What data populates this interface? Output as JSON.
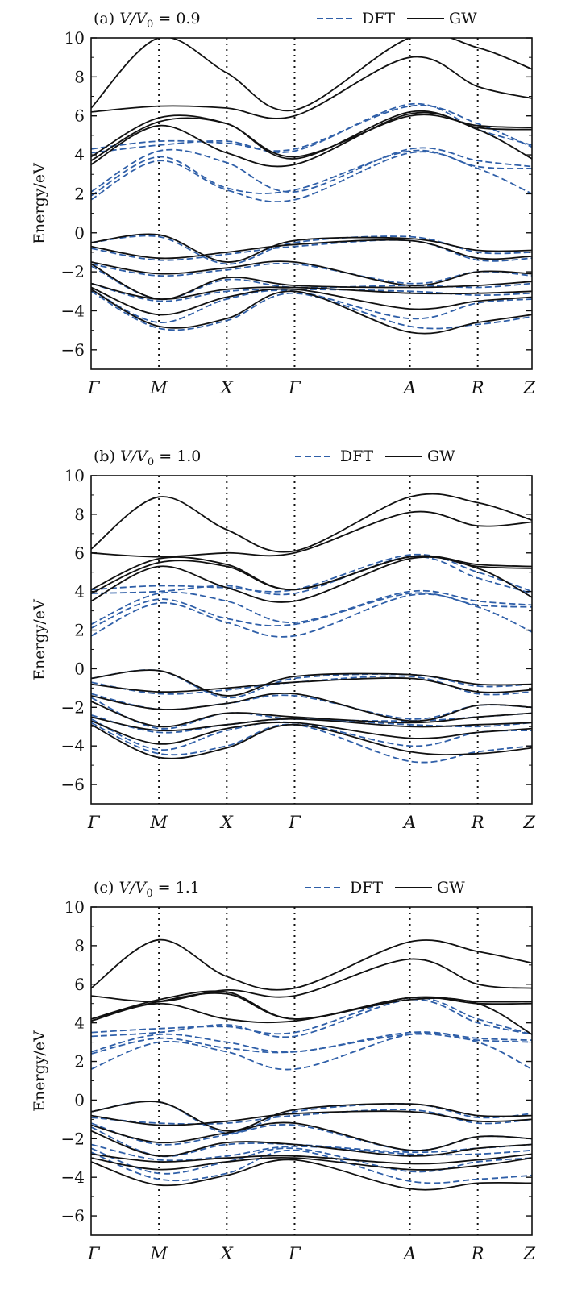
{
  "colors": {
    "dft": "#2f5fa8",
    "gw": "#111111",
    "frame": "#111111"
  },
  "chart_data": [
    {
      "type": "line",
      "panel_label": "(a)",
      "ratio_label": "V/V",
      "ratio_sub": "0",
      "ratio_value": "= 0.9",
      "ylabel": "Energy/eV",
      "ylim": [
        -7,
        10
      ],
      "yticks": [
        10,
        8,
        6,
        4,
        2,
        0,
        -2,
        -4,
        -6
      ],
      "kpoints": [
        "Γ",
        "M",
        "X",
        "Γ",
        "A",
        "R",
        "Z"
      ],
      "kpos": [
        0,
        1,
        2,
        3,
        4.7,
        5.7,
        6.5
      ],
      "legend": {
        "dft": "DFT",
        "gw": "GW"
      },
      "series": [
        {
          "name": "DFT",
          "values": [
            [
              1.7,
              3.7,
              2.2,
              1.7,
              4.1,
              3.3,
              2.0
            ],
            [
              1.9,
              3.9,
              2.3,
              2.2,
              4.2,
              3.4,
              3.3
            ],
            [
              2.1,
              4.2,
              3.6,
              2.1,
              4.3,
              3.7,
              3.4
            ],
            [
              4.1,
              4.5,
              4.7,
              4.2,
              6.6,
              5.3,
              4.5
            ],
            [
              4.3,
              4.7,
              4.6,
              4.3,
              6.5,
              5.6,
              4.4
            ],
            [
              -0.5,
              -0.2,
              -1.6,
              -0.5,
              -0.2,
              -1.0,
              -1.0
            ],
            [
              -0.8,
              -1.4,
              -1.1,
              -0.7,
              -0.4,
              -1.4,
              -1.3
            ],
            [
              -1.6,
              -2.2,
              -1.9,
              -1.6,
              -2.6,
              -2.0,
              -2.2
            ],
            [
              -1.7,
              -3.4,
              -2.4,
              -2.8,
              -2.7,
              -2.8,
              -2.6
            ],
            [
              -2.6,
              -3.5,
              -3.0,
              -2.9,
              -3.0,
              -3.2,
              -3.1
            ],
            [
              -2.9,
              -4.6,
              -3.4,
              -3.0,
              -4.4,
              -3.6,
              -3.4
            ],
            [
              -3.0,
              -4.9,
              -4.5,
              -3.1,
              -4.8,
              -4.7,
              -4.3
            ]
          ]
        },
        {
          "name": "GW",
          "values": [
            [
              3.5,
              5.5,
              4.1,
              3.5,
              6.1,
              5.3,
              3.8
            ],
            [
              3.7,
              5.7,
              5.6,
              3.8,
              6.2,
              5.4,
              5.3
            ],
            [
              3.9,
              5.9,
              5.6,
              3.9,
              6.0,
              5.5,
              5.4
            ],
            [
              6.2,
              6.5,
              6.4,
              6.0,
              9.0,
              7.5,
              6.9
            ],
            [
              6.4,
              10.0,
              8.2,
              6.3,
              10.0,
              9.5,
              8.4
            ],
            [
              -0.5,
              -0.1,
              -1.5,
              -0.4,
              -0.3,
              -0.9,
              -0.9
            ],
            [
              -0.7,
              -1.3,
              -1.0,
              -0.6,
              -0.4,
              -1.3,
              -1.2
            ],
            [
              -1.5,
              -2.1,
              -1.8,
              -1.5,
              -2.7,
              -2.0,
              -2.1
            ],
            [
              -1.6,
              -3.4,
              -2.3,
              -2.7,
              -2.8,
              -2.7,
              -2.5
            ],
            [
              -2.6,
              -3.4,
              -2.9,
              -2.8,
              -3.1,
              -3.1,
              -3.0
            ],
            [
              -2.8,
              -4.2,
              -3.3,
              -2.9,
              -3.9,
              -3.5,
              -3.3
            ],
            [
              -2.9,
              -4.8,
              -4.4,
              -3.0,
              -5.1,
              -4.6,
              -4.2
            ]
          ]
        }
      ]
    },
    {
      "type": "line",
      "panel_label": "(b)",
      "ratio_label": "V/V",
      "ratio_sub": "0",
      "ratio_value": "= 1.0",
      "ylabel": "Energy/eV",
      "ylim": [
        -7,
        10
      ],
      "yticks": [
        10,
        8,
        6,
        4,
        2,
        0,
        -2,
        -4,
        -6
      ],
      "kpoints": [
        "Γ",
        "M",
        "X",
        "Γ",
        "A",
        "R",
        "Z"
      ],
      "kpos": [
        0,
        1,
        2,
        3,
        4.7,
        5.7,
        6.5
      ],
      "legend": {
        "dft": "DFT",
        "gw": "GW"
      },
      "series": [
        {
          "name": "DFT",
          "values": [
            [
              1.7,
              3.4,
              2.4,
              1.7,
              3.8,
              3.2,
              1.9
            ],
            [
              2.1,
              3.6,
              2.6,
              2.3,
              3.9,
              3.3,
              3.2
            ],
            [
              2.3,
              3.9,
              3.5,
              2.4,
              4.0,
              3.5,
              3.3
            ],
            [
              3.9,
              4.0,
              4.3,
              3.9,
              5.8,
              4.7,
              3.9
            ],
            [
              4.1,
              4.3,
              4.2,
              4.1,
              5.9,
              5.0,
              4.0
            ],
            [
              -0.5,
              -0.1,
              -1.5,
              -0.5,
              -0.3,
              -0.9,
              -0.8
            ],
            [
              -0.7,
              -1.3,
              -1.1,
              -0.7,
              -0.4,
              -1.3,
              -1.2
            ],
            [
              -1.3,
              -2.1,
              -1.8,
              -1.4,
              -2.6,
              -1.9,
              -2.0
            ],
            [
              -1.5,
              -3.1,
              -2.3,
              -2.6,
              -2.7,
              -2.5,
              -2.3
            ],
            [
              -2.4,
              -3.3,
              -2.9,
              -2.6,
              -2.9,
              -3.0,
              -2.8
            ],
            [
              -2.6,
              -4.2,
              -3.2,
              -2.8,
              -4.0,
              -3.3,
              -3.2
            ],
            [
              -2.8,
              -4.4,
              -4.0,
              -2.9,
              -4.8,
              -4.3,
              -4.0
            ]
          ]
        },
        {
          "name": "GW",
          "values": [
            [
              3.5,
              5.3,
              4.2,
              3.5,
              5.7,
              5.2,
              3.7
            ],
            [
              3.9,
              5.5,
              5.3,
              4.1,
              5.8,
              5.3,
              5.2
            ],
            [
              4.1,
              5.7,
              5.4,
              4.1,
              5.8,
              5.4,
              5.3
            ],
            [
              6.0,
              5.8,
              6.0,
              6.0,
              8.1,
              7.4,
              7.6
            ],
            [
              6.2,
              8.9,
              7.2,
              6.1,
              8.9,
              8.6,
              7.7
            ],
            [
              -0.5,
              -0.1,
              -1.4,
              -0.4,
              -0.3,
              -0.8,
              -0.8
            ],
            [
              -0.8,
              -1.2,
              -1.0,
              -0.7,
              -0.5,
              -1.2,
              -1.1
            ],
            [
              -1.4,
              -2.1,
              -1.8,
              -1.3,
              -2.7,
              -1.9,
              -2.0
            ],
            [
              -1.7,
              -3.0,
              -2.3,
              -2.5,
              -2.8,
              -2.5,
              -2.3
            ],
            [
              -2.5,
              -3.2,
              -2.9,
              -2.6,
              -3.0,
              -2.9,
              -2.8
            ],
            [
              -2.7,
              -3.9,
              -3.1,
              -2.8,
              -3.6,
              -3.3,
              -3.1
            ],
            [
              -2.9,
              -4.6,
              -4.1,
              -2.9,
              -4.3,
              -4.4,
              -4.1
            ]
          ]
        }
      ]
    },
    {
      "type": "line",
      "panel_label": "(c)",
      "ratio_label": "V/V",
      "ratio_sub": "0",
      "ratio_value": "= 1.1",
      "ylabel": "Energy/eV",
      "ylim": [
        -7,
        10
      ],
      "yticks": [
        10,
        8,
        6,
        4,
        2,
        0,
        -2,
        -4,
        -6
      ],
      "kpoints": [
        "Γ",
        "M",
        "X",
        "Γ",
        "A",
        "R",
        "Z"
      ],
      "kpos": [
        0,
        1,
        2,
        3,
        4.7,
        5.7,
        6.5
      ],
      "legend": {
        "dft": "DFT",
        "gw": "GW"
      },
      "series": [
        {
          "name": "DFT",
          "values": [
            [
              1.6,
              3.0,
              2.5,
              1.6,
              3.4,
              3.0,
              1.6
            ],
            [
              2.4,
              3.2,
              2.7,
              2.5,
              3.4,
              3.1,
              3.0
            ],
            [
              2.5,
              3.4,
              3.0,
              2.5,
              3.5,
              3.2,
              3.1
            ],
            [
              3.3,
              3.5,
              3.9,
              3.3,
              5.2,
              4.0,
              3.4
            ],
            [
              3.5,
              3.7,
              3.8,
              3.5,
              5.3,
              4.2,
              3.4
            ],
            [
              -0.6,
              -0.1,
              -1.7,
              -0.6,
              -0.2,
              -0.9,
              -0.7
            ],
            [
              -0.9,
              -1.2,
              -1.2,
              -0.8,
              -0.5,
              -1.2,
              -1.0
            ],
            [
              -1.2,
              -2.3,
              -1.8,
              -1.3,
              -2.6,
              -1.9,
              -2.0
            ],
            [
              -1.4,
              -2.9,
              -2.3,
              -2.3,
              -2.7,
              -2.5,
              -2.3
            ],
            [
              -2.3,
              -3.1,
              -2.9,
              -2.4,
              -2.8,
              -2.8,
              -2.6
            ],
            [
              -2.5,
              -3.8,
              -3.2,
              -2.5,
              -3.7,
              -3.2,
              -3.0
            ],
            [
              -2.7,
              -4.1,
              -3.8,
              -2.6,
              -4.2,
              -4.1,
              -3.9
            ]
          ]
        },
        {
          "name": "GW",
          "values": [
            [
              4.1,
              5.0,
              4.2,
              4.1,
              5.2,
              5.0,
              3.4
            ],
            [
              4.2,
              5.1,
              5.5,
              4.2,
              5.3,
              5.0,
              5.0
            ],
            [
              4.2,
              5.2,
              5.6,
              4.2,
              5.3,
              5.1,
              5.1
            ],
            [
              5.4,
              5.1,
              5.7,
              5.4,
              7.3,
              6.0,
              5.8
            ],
            [
              5.8,
              8.3,
              6.4,
              5.8,
              8.2,
              7.7,
              7.1
            ],
            [
              -0.6,
              -0.1,
              -1.6,
              -0.5,
              -0.2,
              -0.8,
              -0.8
            ],
            [
              -0.8,
              -1.3,
              -1.1,
              -0.7,
              -0.6,
              -1.1,
              -1.0
            ],
            [
              -1.3,
              -2.2,
              -1.7,
              -1.2,
              -2.6,
              -1.9,
              -2.0
            ],
            [
              -1.6,
              -2.9,
              -2.2,
              -2.3,
              -2.9,
              -2.5,
              -2.3
            ],
            [
              -2.8,
              -3.2,
              -3.0,
              -2.9,
              -3.3,
              -3.1,
              -2.8
            ],
            [
              -3.0,
              -3.6,
              -3.2,
              -3.0,
              -3.6,
              -3.4,
              -3.0
            ],
            [
              -3.2,
              -4.4,
              -3.9,
              -3.1,
              -4.6,
              -4.3,
              -4.3
            ]
          ]
        }
      ]
    }
  ]
}
